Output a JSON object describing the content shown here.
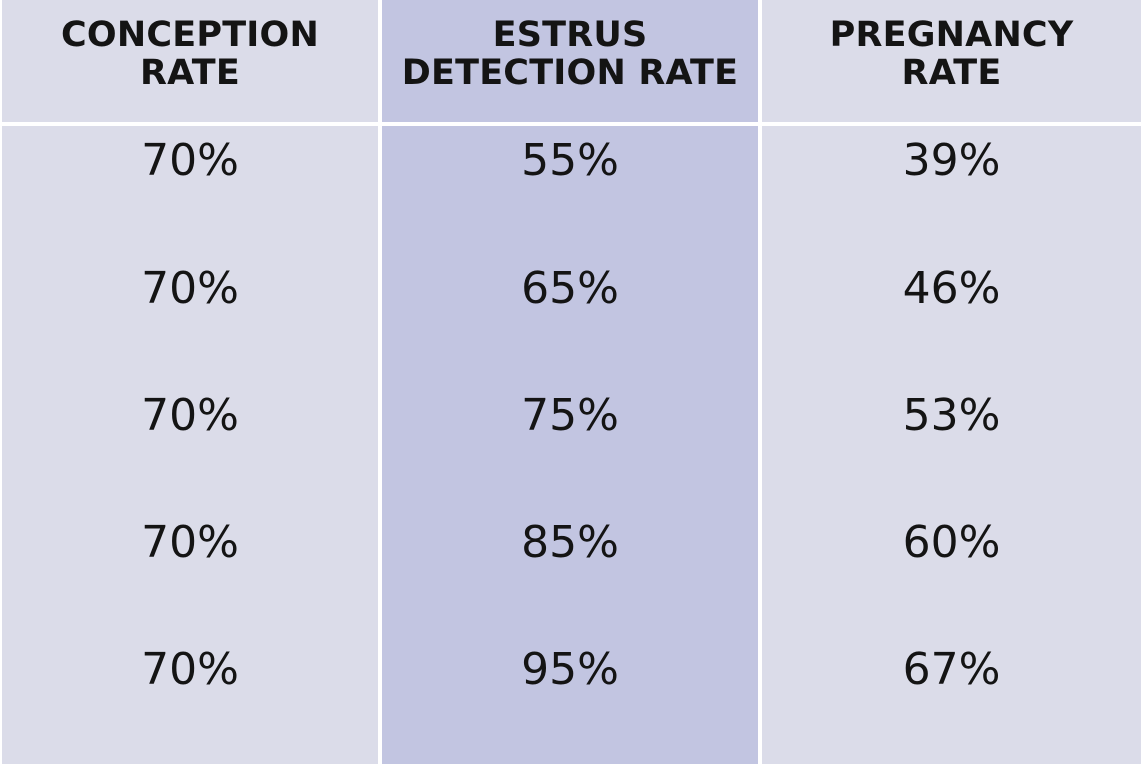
{
  "table": {
    "columns": [
      {
        "header_lines": [
          "CONCEPTION",
          "RATE"
        ],
        "values": [
          "70%",
          "70%",
          "70%",
          "70%",
          "70%"
        ]
      },
      {
        "header_lines": [
          "ESTRUS",
          "DETECTION RATE"
        ],
        "values": [
          "55%",
          "65%",
          "75%",
          "85%",
          "95%"
        ]
      },
      {
        "header_lines": [
          "PREGNANCY",
          "RATE"
        ],
        "values": [
          "39%",
          "46%",
          "53%",
          "60%",
          "67%"
        ]
      }
    ]
  },
  "colors": {
    "light_column": "#dbdce9",
    "highlight_column": "#c2c5e1",
    "divider": "#ffffff",
    "text": "#141414"
  }
}
